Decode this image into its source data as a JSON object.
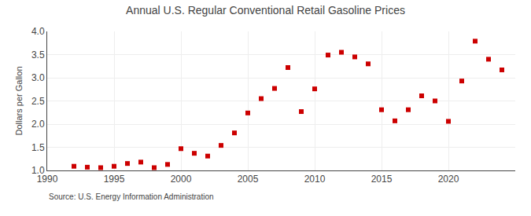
{
  "chart_data": {
    "type": "scatter",
    "title": "Annual U.S. Regular Conventional Retail Gasoline Prices",
    "ylabel": "Dollars per Gallon",
    "annotations": [
      "Source: U.S. Energy Information Administration"
    ],
    "x": [
      1992,
      1993,
      1994,
      1995,
      1996,
      1997,
      1998,
      1999,
      2000,
      2001,
      2002,
      2003,
      2004,
      2005,
      2006,
      2007,
      2008,
      2009,
      2010,
      2011,
      2012,
      2013,
      2014,
      2015,
      2016,
      2017,
      2018,
      2019,
      2020,
      2021,
      2022,
      2023,
      2024
    ],
    "values": [
      1.09,
      1.07,
      1.06,
      1.09,
      1.15,
      1.18,
      1.06,
      1.13,
      1.47,
      1.37,
      1.31,
      1.54,
      1.81,
      2.24,
      2.55,
      2.77,
      3.22,
      2.27,
      2.76,
      3.49,
      3.55,
      3.45,
      3.3,
      2.31,
      2.07,
      2.31,
      2.61,
      2.5,
      2.06,
      2.93,
      3.79,
      3.4,
      3.17
    ],
    "color": "#cc0000",
    "marker": "square",
    "xlim": [
      1990,
      2025
    ],
    "xticks": [
      1990,
      1995,
      2000,
      2005,
      2010,
      2015,
      2020
    ],
    "ylim": [
      1.0,
      4.0
    ],
    "yticks": [
      {
        "value": 1.0,
        "label": "1.0"
      },
      {
        "value": 1.5,
        "label": "1.5"
      },
      {
        "value": 2.0,
        "label": "2.0"
      },
      {
        "value": 2.5,
        "label": "2.5"
      },
      {
        "value": 3.0,
        "label": "3.0"
      },
      {
        "value": 3.5,
        "label": "3.5"
      },
      {
        "value": 4.0,
        "label": "4.0"
      }
    ],
    "grid": true
  }
}
